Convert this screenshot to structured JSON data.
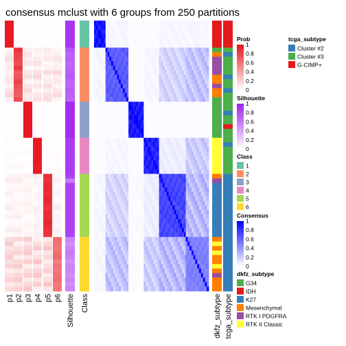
{
  "chart_data": {
    "type": "heatmap",
    "title": "consensus mclust with 6 groups from 250 partitions",
    "n_samples": 60,
    "class_order": [
      1,
      2,
      3,
      4,
      5,
      6
    ],
    "column_labels": [
      "p1",
      "p2",
      "p3",
      "p4",
      "p5",
      "p6",
      "Silhouette",
      "Class"
    ],
    "right_bar_labels": [
      "dkfz_subtype",
      "tcga_subtype"
    ],
    "colors": {
      "prob_low": "#ffffff",
      "prob_high": "#e8131c",
      "silhouette_low": "#ffffff",
      "silhouette_high": "#a020f0",
      "consensus_low": "#ffffff",
      "consensus_high": "#0000ff",
      "class": {
        "1": "#66c2a5",
        "2": "#fc8d62",
        "3": "#8da0cb",
        "4": "#e78ac3",
        "5": "#a6d854",
        "6": "#ffd92f"
      },
      "tcga": {
        "Cluster #2": "#377eb8",
        "Cluster #3": "#4daf4a",
        "G-CIMP+": "#e41a1c"
      },
      "dkfz": {
        "G34": "#4daf4a",
        "IDH": "#e41a1c",
        "K27": "#377eb8",
        "Mesenchymal": "#ff7f00",
        "RTK I PDGFRA": "#984ea3",
        "RTK II Classic": "#ffff33"
      }
    },
    "samples": {
      "class": [
        1,
        1,
        1,
        1,
        1,
        1,
        2,
        2,
        2,
        2,
        2,
        2,
        2,
        2,
        2,
        2,
        2,
        2,
        3,
        3,
        3,
        3,
        3,
        3,
        3,
        3,
        4,
        4,
        4,
        4,
        4,
        4,
        4,
        4,
        5,
        5,
        5,
        5,
        5,
        5,
        5,
        5,
        5,
        5,
        5,
        5,
        5,
        5,
        6,
        6,
        6,
        6,
        6,
        6,
        6,
        6,
        6,
        6,
        6,
        6
      ],
      "dkfz": [
        "IDH",
        "IDH",
        "IDH",
        "IDH",
        "IDH",
        "IDH",
        "G34",
        "Mesenchymal",
        "RTK I PDGFRA",
        "RTK I PDGFRA",
        "RTK I PDGFRA",
        "RTK I PDGFRA",
        "Mesenchymal",
        "Mesenchymal",
        "RTK I PDGFRA",
        "Mesenchymal",
        "Mesenchymal",
        "G34",
        "G34",
        "G34",
        "G34",
        "G34",
        "G34",
        "G34",
        "G34",
        "G34",
        "RTK II Classic",
        "RTK II Classic",
        "RTK II Classic",
        "RTK II Classic",
        "RTK II Classic",
        "RTK II Classic",
        "RTK II Classic",
        "RTK II Classic",
        "Mesenchymal",
        "RTK I PDGFRA",
        "K27",
        "K27",
        "K27",
        "K27",
        "K27",
        "K27",
        "K27",
        "K27",
        "K27",
        "K27",
        "K27",
        "K27",
        "Mesenchymal",
        "RTK II Classic",
        "Mesenchymal",
        "RTK II Classic",
        "Mesenchymal",
        "Mesenchymal",
        "RTK II Classic",
        "Mesenchymal",
        "RTK I PDGFRA",
        "Mesenchymal",
        "Mesenchymal",
        "Mesenchymal"
      ],
      "tcga": [
        "G-CIMP+",
        "G-CIMP+",
        "G-CIMP+",
        "G-CIMP+",
        "G-CIMP+",
        "G-CIMP+",
        "Cluster #3",
        "Cluster #2",
        "Cluster #3",
        "Cluster #3",
        "Cluster #3",
        "Cluster #3",
        "Cluster #2",
        "Cluster #3",
        "Cluster #3",
        "Cluster #2",
        "Cluster #3",
        "Cluster #3",
        "Cluster #3",
        "Cluster #3",
        "Cluster #2",
        "Cluster #3",
        "Cluster #3",
        "G-CIMP+",
        "Cluster #3",
        "Cluster #3",
        "Cluster #3",
        "Cluster #2",
        "Cluster #3",
        "Cluster #3",
        "Cluster #3",
        "Cluster #3",
        "Cluster #3",
        "Cluster #3",
        "Cluster #2",
        "Cluster #2",
        "Cluster #2",
        "Cluster #2",
        "Cluster #2",
        "Cluster #2",
        "Cluster #2",
        "Cluster #2",
        "Cluster #2",
        "Cluster #2",
        "Cluster #2",
        "Cluster #2",
        "Cluster #2",
        "Cluster #2",
        "Cluster #2",
        "Cluster #2",
        "Cluster #2",
        "Cluster #2",
        "Cluster #2",
        "Cluster #2",
        "Cluster #2",
        "Cluster #2",
        "Cluster #2",
        "Cluster #2",
        "Cluster #2",
        "Cluster #2"
      ],
      "prob_main": [
        0.98,
        0.97,
        0.97,
        0.98,
        0.96,
        0.97,
        0.85,
        0.8,
        0.78,
        0.75,
        0.82,
        0.7,
        0.72,
        0.8,
        0.74,
        0.7,
        0.68,
        0.75,
        0.98,
        0.98,
        0.98,
        0.98,
        0.98,
        0.98,
        0.98,
        0.98,
        0.97,
        0.97,
        0.96,
        0.96,
        0.97,
        0.96,
        0.95,
        0.97,
        0.88,
        0.85,
        0.9,
        0.9,
        0.88,
        0.92,
        0.9,
        0.85,
        0.9,
        0.88,
        0.92,
        0.9,
        0.86,
        0.85,
        0.62,
        0.6,
        0.58,
        0.62,
        0.64,
        0.55,
        0.6,
        0.58,
        0.6,
        0.62,
        0.56,
        0.58
      ],
      "silhouette": [
        0.9,
        0.9,
        0.9,
        0.9,
        0.9,
        0.9,
        0.75,
        0.7,
        0.72,
        0.68,
        0.7,
        0.72,
        0.74,
        0.7,
        0.68,
        0.72,
        0.7,
        0.7,
        0.95,
        0.95,
        0.95,
        0.95,
        0.95,
        0.95,
        0.95,
        0.95,
        0.88,
        0.88,
        0.88,
        0.88,
        0.88,
        0.88,
        0.88,
        0.88,
        0.85,
        0.6,
        0.85,
        0.85,
        0.85,
        0.85,
        0.85,
        0.85,
        0.85,
        0.85,
        0.85,
        0.85,
        0.85,
        0.85,
        0.55,
        0.5,
        0.55,
        0.6,
        0.55,
        0.5,
        0.55,
        0.55,
        0.5,
        0.55,
        0.5,
        0.55
      ]
    },
    "legends": [
      {
        "title": "Prob",
        "ticks": [
          "1",
          "0.8",
          "0.6",
          "0.4",
          "0.2",
          "0"
        ]
      },
      {
        "title": "Silhouette",
        "ticks": [
          "1",
          "0.8",
          "0.6",
          "0.4",
          "0.2",
          "0"
        ]
      },
      {
        "title": "Class",
        "items": [
          "1",
          "2",
          "3",
          "4",
          "5",
          "6"
        ]
      },
      {
        "title": "Consensus",
        "ticks": [
          "1",
          "0.8",
          "0.6",
          "0.4",
          "0.2",
          "0"
        ]
      },
      {
        "title": "dkfz_subtype",
        "items": [
          "G34",
          "IDH",
          "K27",
          "Mesenchymal",
          "RTK I PDGFRA",
          "RTK II Classic"
        ]
      },
      {
        "title": "tcga_subtype",
        "items": [
          "Cluster #2",
          "Cluster #3",
          "G-CIMP+"
        ]
      }
    ]
  }
}
